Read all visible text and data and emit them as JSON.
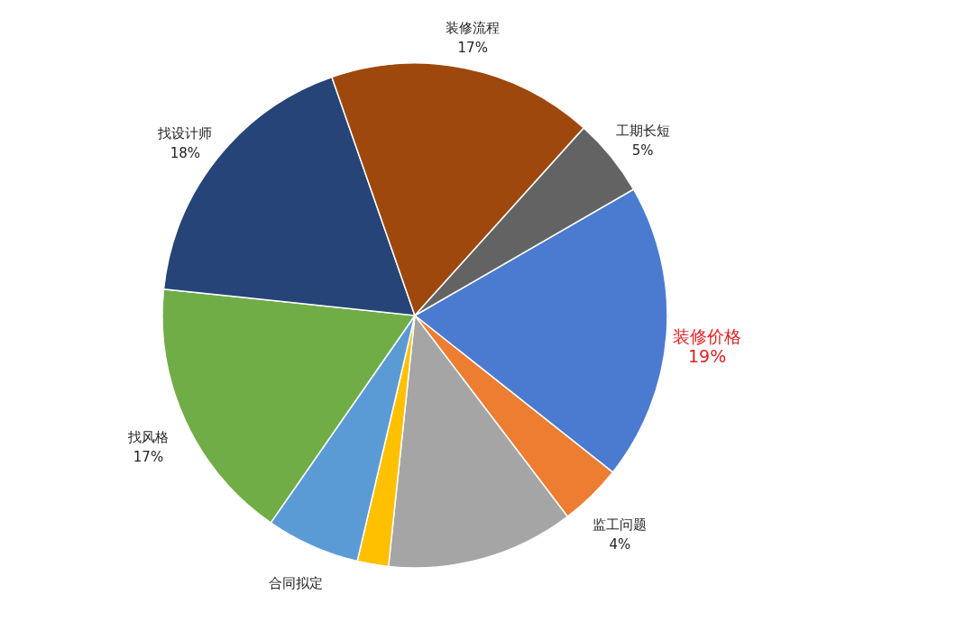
{
  "chart_data": {
    "type": "pie",
    "categories": [
      "装修价格",
      "监工问题",
      null,
      null,
      "合同拟定",
      "找风格",
      "找设计师",
      "装修流程",
      "工期长短"
    ],
    "values": [
      19,
      4,
      12,
      2,
      6,
      17,
      18,
      17,
      5
    ],
    "value_labels": [
      "19%",
      "4%",
      null,
      null,
      null,
      "17%",
      "18%",
      "17%",
      "5%"
    ],
    "colors": [
      "#4a7bd0",
      "#ed7d31",
      "#a5a5a5",
      "#ffc000",
      "#5b9bd5",
      "#70ad47",
      "#264478",
      "#9e480e",
      "#636363"
    ]
  }
}
